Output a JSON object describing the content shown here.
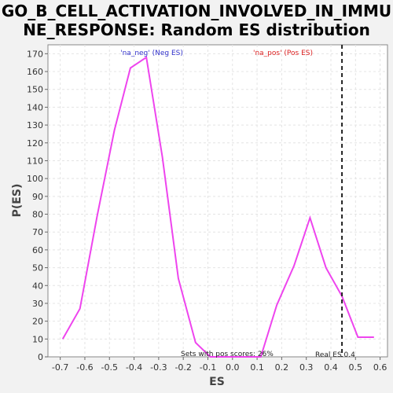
{
  "chart_data": {
    "type": "line",
    "title_line1": "GO_B_CELL_ACTIVATION_INVOLVED_IN_IMMU",
    "title_line2": "NE_RESPONSE: Random ES distribution",
    "xlabel": "ES",
    "ylabel": "P(ES)",
    "xlim": [
      -0.75,
      0.63
    ],
    "ylim": [
      0,
      175
    ],
    "xticks": [
      "-0.7",
      "-0.6",
      "-0.5",
      "-0.4",
      "-0.3",
      "-0.2",
      "-0.1",
      "0.0",
      "0.1",
      "0.2",
      "0.3",
      "0.4",
      "0.5",
      "0.6"
    ],
    "xtick_values": [
      -0.7,
      -0.6,
      -0.5,
      -0.4,
      -0.3,
      -0.2,
      -0.1,
      0.0,
      0.1,
      0.2,
      0.3,
      0.4,
      0.5,
      0.6
    ],
    "yticks": [
      0,
      10,
      20,
      30,
      40,
      50,
      60,
      70,
      80,
      90,
      100,
      110,
      120,
      130,
      140,
      150,
      160,
      170
    ],
    "grid": true,
    "series": [
      {
        "color": "#ee44ee",
        "x": [
          -0.69,
          -0.62,
          -0.55,
          -0.48,
          -0.415,
          -0.35,
          -0.285,
          -0.22,
          -0.15,
          -0.09,
          -0.02,
          0.05,
          0.115,
          0.18,
          0.25,
          0.315,
          0.38,
          0.445,
          0.51,
          0.575
        ],
        "y": [
          10,
          27,
          79,
          127,
          162,
          168,
          112,
          44,
          8,
          0,
          0,
          0,
          0,
          29,
          51,
          78,
          50,
          34,
          11,
          11
        ]
      }
    ],
    "real_es": {
      "x": 0.445,
      "label": "Real ES 0.4",
      "color": "#222222"
    },
    "annotations": {
      "neg_label": "'na_neg' (Neg ES)",
      "neg_color": "#3333cc",
      "pos_label": "'na_pos' (Pos ES)",
      "pos_color": "#dd2222",
      "pos_scores": "Sets with pos scores: 26%"
    }
  }
}
